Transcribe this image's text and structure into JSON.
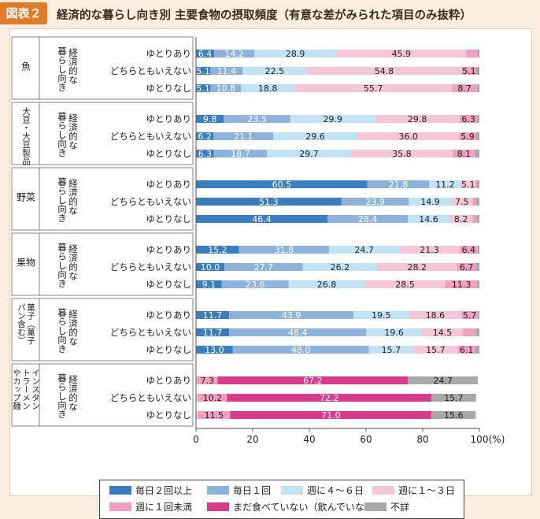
{
  "header": {
    "badge": "図表２",
    "title": "経済的な暮らし向き別 主要食物の摂取頻度（有意な差がみられた項目のみ抜粋）"
  },
  "group_sublabel": "経済的な暮らし向き",
  "x_axis": {
    "ticks": [
      "0",
      "20",
      "40",
      "60",
      "80",
      "100"
    ],
    "unit": "(%)"
  },
  "colors": [
    "#3b7ec0",
    "#8db3dc",
    "#c2e3f5",
    "#f5c6d7",
    "#ef9fc0",
    "#d83c8c",
    "#a8a8a8"
  ],
  "legend": [
    "毎日２回以上",
    "毎日１回",
    "週に４～６日",
    "週に１～３日",
    "週に１回未満",
    "まだ食べていない（飲んでいない）",
    "不詳"
  ],
  "chart_data": {
    "type": "bar",
    "orientation": "horizontal",
    "stacked": true,
    "xlim": [
      0,
      100
    ],
    "xunit": "(%)",
    "series_names": [
      "毎日２回以上",
      "毎日１回",
      "週に４～６日",
      "週に１～３日",
      "週に１回未満",
      "まだ食べていない（飲んでいない）",
      "不詳"
    ],
    "groups": [
      {
        "name": "魚",
        "rows": [
          {
            "label": "ゆとりあり",
            "values": [
              6.4,
              14.2,
              28.9,
              45.9,
              4.0,
              0,
              0.6
            ]
          },
          {
            "label": "どちらともいえない",
            "values": [
              5.1,
              11.4,
              22.5,
              54.8,
              5.1,
              0,
              1.1
            ]
          },
          {
            "label": "ゆとりなし",
            "values": [
              5.1,
              10.8,
              18.8,
              55.7,
              8.7,
              0,
              0.9
            ]
          }
        ]
      },
      {
        "name": "大豆・大豆製品",
        "rows": [
          {
            "label": "ゆとりあり",
            "values": [
              9.8,
              23.5,
              29.9,
              29.8,
              6.3,
              0,
              0.7
            ]
          },
          {
            "label": "どちらともいえない",
            "values": [
              6.2,
              21.1,
              29.6,
              36.0,
              5.9,
              0,
              1.2
            ]
          },
          {
            "label": "ゆとりなし",
            "values": [
              6.3,
              18.7,
              29.7,
              35.8,
              8.1,
              0,
              1.4
            ]
          }
        ]
      },
      {
        "name": "野菜",
        "rows": [
          {
            "label": "ゆとりあり",
            "values": [
              60.5,
              21.8,
              11.2,
              5.1,
              0.6,
              0,
              0.8
            ]
          },
          {
            "label": "どちらともいえない",
            "values": [
              51.3,
              23.9,
              14.9,
              7.5,
              1.3,
              0,
              1.1
            ]
          },
          {
            "label": "ゆとりなし",
            "values": [
              46.4,
              28.4,
              14.6,
              8.2,
              1.4,
              0,
              1.0
            ]
          }
        ]
      },
      {
        "name": "果物",
        "rows": [
          {
            "label": "ゆとりあり",
            "values": [
              15.2,
              31.8,
              24.7,
              21.3,
              6.4,
              0,
              0.6
            ]
          },
          {
            "label": "どちらともいえない",
            "values": [
              10.0,
              27.7,
              26.2,
              28.2,
              6.7,
              0,
              1.2
            ]
          },
          {
            "label": "ゆとりなし",
            "values": [
              9.1,
              23.6,
              26.8,
              28.5,
              11.3,
              0,
              0.7
            ]
          }
        ]
      },
      {
        "name": "菓子（菓子パン含む）",
        "rows": [
          {
            "label": "ゆとりあり",
            "values": [
              11.7,
              43.9,
              19.5,
              18.6,
              5.7,
              0,
              0.6
            ]
          },
          {
            "label": "どちらともいえない",
            "values": [
              11.7,
              48.4,
              19.6,
              14.5,
              4.6,
              0,
              1.2
            ]
          },
          {
            "label": "ゆとりなし",
            "values": [
              13.0,
              48.0,
              15.7,
              15.7,
              6.1,
              0,
              1.5
            ]
          }
        ]
      },
      {
        "name": "インスタントラーメンやカップ麺",
        "rows": [
          {
            "label": "ゆとりあり",
            "values": [
              0,
              0,
              0,
              0.3,
              7.3,
              67.2,
              24.7
            ]
          },
          {
            "label": "どちらともいえない",
            "values": [
              0,
              0,
              0,
              0.7,
              10.2,
              72.2,
              15.7
            ]
          },
          {
            "label": "ゆとりなし",
            "values": [
              0,
              0,
              0,
              0.6,
              11.5,
              71.0,
              15.6
            ]
          }
        ]
      }
    ],
    "data_labels": [
      [
        [
          [
            "6.4",
            "14.2",
            "28.9",
            "45.9",
            "",
            "",
            ""
          ],
          [
            "5.1",
            "11.4",
            "22.5",
            "54.8",
            "5.1",
            "",
            ""
          ],
          [
            "5.1",
            "10.8",
            "18.8",
            "55.7",
            "8.7",
            "",
            ""
          ]
        ]
      ],
      [
        [
          [
            "9.8",
            "23.5",
            "29.9",
            "29.8",
            "6.3",
            "",
            ""
          ],
          [
            "6.2",
            "21.1",
            "29.6",
            "36.0",
            "5.9",
            "",
            ""
          ],
          [
            "6.3",
            "18.7",
            "29.7",
            "35.8",
            "8.1",
            "",
            ""
          ]
        ]
      ],
      [
        [
          [
            "60.5",
            "21.8",
            "11.2",
            "5.1",
            "",
            "",
            ""
          ],
          [
            "51.3",
            "23.9",
            "14.9",
            "7.5",
            "",
            "",
            ""
          ],
          [
            "46.4",
            "28.4",
            "14.6",
            "8.2",
            "",
            "",
            ""
          ]
        ]
      ],
      [
        [
          [
            "15.2",
            "31.8",
            "24.7",
            "21.3",
            "6.4",
            "",
            ""
          ],
          [
            "10.0",
            "27.7",
            "26.2",
            "28.2",
            "6.7",
            "",
            ""
          ],
          [
            "9.1",
            "23.6",
            "26.8",
            "28.5",
            "11.3",
            "",
            ""
          ]
        ]
      ],
      [
        [
          [
            "11.7",
            "43.9",
            "19.5",
            "18.6",
            "5.7",
            "",
            ""
          ],
          [
            "11.7",
            "48.4",
            "19.6",
            "14.5",
            "",
            "",
            ""
          ],
          [
            "13.0",
            "48.0",
            "15.7",
            "15.7",
            "6.1",
            "",
            ""
          ]
        ]
      ],
      [
        [
          [
            "",
            "",
            "",
            "",
            "7.3",
            "67.2",
            "24.7"
          ],
          [
            "",
            "",
            "",
            "",
            "10.2",
            "72.2",
            "15.7"
          ],
          [
            "",
            "",
            "",
            "",
            "11.5",
            "71.0",
            "15.6"
          ]
        ]
      ]
    ]
  }
}
